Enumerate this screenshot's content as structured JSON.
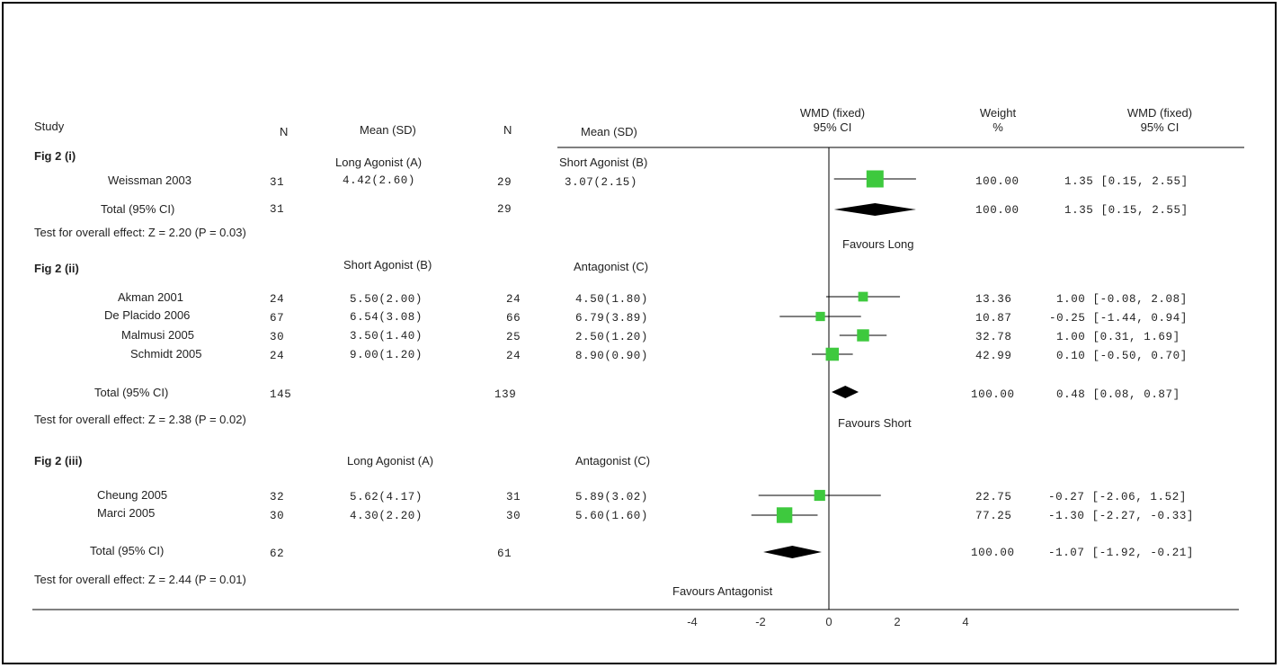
{
  "header": {
    "study": "Study",
    "n_a": "N",
    "mean_a": "Mean (SD)",
    "n_b": "N",
    "mean_b": "Mean (SD)",
    "wmd_plot_1": "WMD (fixed)",
    "wmd_plot_2": "95% CI",
    "weight_1": "Weight",
    "weight_2": "%",
    "wmd_val_1": "WMD (fixed)",
    "wmd_val_2": "95% CI"
  },
  "groups": [
    {
      "label": "Fig 2 (i)",
      "arm_a": "Long Agonist (A)",
      "arm_b": "Short Agonist (B)",
      "studies": [
        {
          "name": "Weissman 2003",
          "n_a": "31",
          "mean_a": "4.42(2.60)",
          "n_b": "29",
          "mean_b": "3.07(2.15)",
          "weight": "100.00",
          "wmd": "1.35 [0.15, 2.55]"
        }
      ],
      "total": {
        "label": "Total (95% CI)",
        "n_a": "31",
        "n_b": "29",
        "weight": "100.00",
        "wmd": "1.35 [0.15, 2.55]"
      },
      "test": "Test for overall effect: Z = 2.20 (P = 0.03)",
      "favours": "Favours Long"
    },
    {
      "label": "Fig 2 (ii)",
      "arm_a": "Short Agonist (B)",
      "arm_b": "Antagonist (C)",
      "studies": [
        {
          "name": "Akman 2001",
          "n_a": "24",
          "mean_a": "5.50(2.00)",
          "n_b": "24",
          "mean_b": "4.50(1.80)",
          "weight": "13.36",
          "wmd": "1.00 [-0.08, 2.08]"
        },
        {
          "name": "De Placido 2006",
          "n_a": "67",
          "mean_a": "6.54(3.08)",
          "n_b": "66",
          "mean_b": "6.79(3.89)",
          "weight": "10.87",
          "wmd": "-0.25 [-1.44, 0.94]"
        },
        {
          "name": "Malmusi 2005",
          "n_a": "30",
          "mean_a": "3.50(1.40)",
          "n_b": "25",
          "mean_b": "2.50(1.20)",
          "weight": "32.78",
          "wmd": "1.00 [0.31, 1.69]"
        },
        {
          "name": "Schmidt 2005",
          "n_a": "24",
          "mean_a": "9.00(1.20)",
          "n_b": "24",
          "mean_b": "8.90(0.90)",
          "weight": "42.99",
          "wmd": "0.10 [-0.50, 0.70]"
        }
      ],
      "total": {
        "label": "Total (95% CI)",
        "n_a": "145",
        "n_b": "139",
        "weight": "100.00",
        "wmd": "0.48 [0.08, 0.87]"
      },
      "test": "Test for overall effect: Z = 2.38 (P = 0.02)",
      "favours": "Favours Short"
    },
    {
      "label": "Fig 2 (iii)",
      "arm_a": "Long Agonist (A)",
      "arm_b": "Antagonist (C)",
      "studies": [
        {
          "name": "Cheung 2005",
          "n_a": "32",
          "mean_a": "5.62(4.17)",
          "n_b": "31",
          "mean_b": "5.89(3.02)",
          "weight": "22.75",
          "wmd": "-0.27 [-2.06, 1.52]"
        },
        {
          "name": "Marci 2005",
          "n_a": "30",
          "mean_a": "4.30(2.20)",
          "n_b": "30",
          "mean_b": "5.60(1.60)",
          "weight": "77.25",
          "wmd": "-1.30 [-2.27, -0.33]"
        }
      ],
      "total": {
        "label": "Total (95% CI)",
        "n_a": "62",
        "n_b": "61",
        "weight": "100.00",
        "wmd": "-1.07 [-1.92, -0.21]"
      },
      "test": "Test for overall effect: Z = 2.44 (P = 0.01)",
      "favours": "Favours Antagonist"
    }
  ],
  "colors": {
    "square": "#3ec93e",
    "diamond": "#000000",
    "line": "#000000"
  },
  "chart_data": {
    "type": "scatter",
    "subtype": "forest",
    "xlim": [
      -4,
      4
    ],
    "x_ticks": [
      "-4",
      "-2",
      "0",
      "2",
      "4"
    ],
    "reference_line": 0,
    "studies": [
      {
        "group": "Fig 2 (i)",
        "name": "Weissman 2003",
        "estimate": 1.35,
        "ci": [
          0.15,
          2.55
        ],
        "weight": 100.0
      },
      {
        "group": "Fig 2 (ii)",
        "name": "Akman 2001",
        "estimate": 1.0,
        "ci": [
          -0.08,
          2.08
        ],
        "weight": 13.36
      },
      {
        "group": "Fig 2 (ii)",
        "name": "De Placido 2006",
        "estimate": -0.25,
        "ci": [
          -1.44,
          0.94
        ],
        "weight": 10.87
      },
      {
        "group": "Fig 2 (ii)",
        "name": "Malmusi 2005",
        "estimate": 1.0,
        "ci": [
          0.31,
          1.69
        ],
        "weight": 32.78
      },
      {
        "group": "Fig 2 (ii)",
        "name": "Schmidt 2005",
        "estimate": 0.1,
        "ci": [
          -0.5,
          0.7
        ],
        "weight": 42.99
      },
      {
        "group": "Fig 2 (iii)",
        "name": "Cheung 2005",
        "estimate": -0.27,
        "ci": [
          -2.06,
          1.52
        ],
        "weight": 22.75
      },
      {
        "group": "Fig 2 (iii)",
        "name": "Marci 2005",
        "estimate": -1.3,
        "ci": [
          -2.27,
          -0.33
        ],
        "weight": 77.25
      }
    ],
    "totals": [
      {
        "group": "Fig 2 (i)",
        "estimate": 1.35,
        "ci": [
          0.15,
          2.55
        ]
      },
      {
        "group": "Fig 2 (ii)",
        "estimate": 0.48,
        "ci": [
          0.08,
          0.87
        ]
      },
      {
        "group": "Fig 2 (iii)",
        "estimate": -1.07,
        "ci": [
          -1.92,
          -0.21
        ]
      }
    ]
  }
}
